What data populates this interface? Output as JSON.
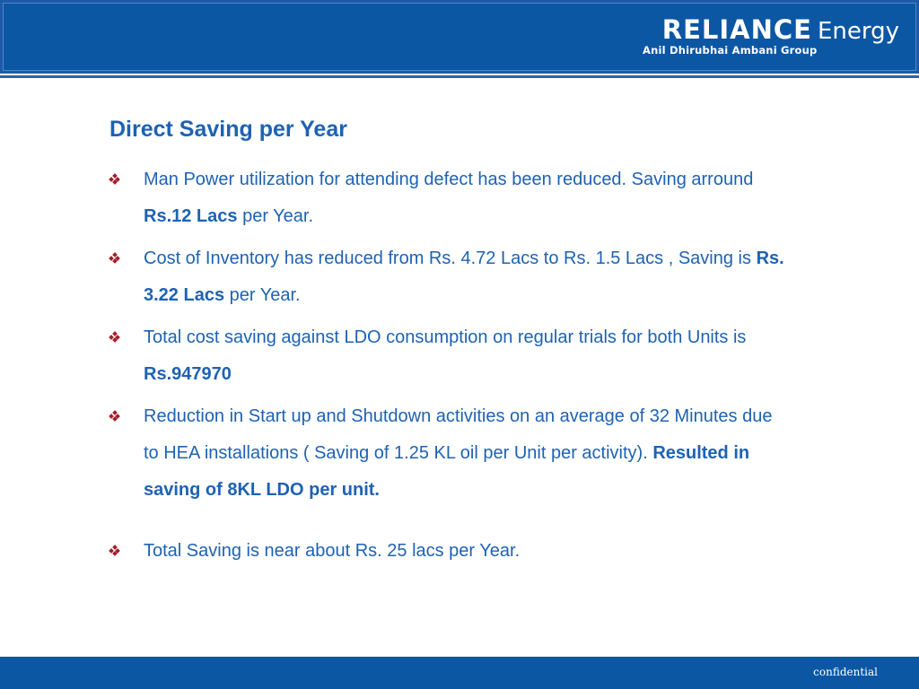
{
  "header": {
    "logo_brand": "RELIANCE",
    "logo_product": "Energy",
    "logo_subtitle": "Anil Dhirubhai Ambani Group",
    "colors": {
      "bar": "#0b57a4",
      "title": "#1e62b3",
      "bullet_icon": "#a51d2a"
    }
  },
  "slide": {
    "title": "Direct Saving per Year",
    "bullet_icon": "diamond-cluster-icon",
    "bullets": [
      {
        "text": "Man Power utilization for attending defect has been reduced. Saving arround ",
        "bold": "Rs.12 Lacs",
        "after": " per Year."
      },
      {
        "text": "Cost of Inventory has reduced from Rs. 4.72 Lacs to Rs. 1.5 Lacs , Saving is ",
        "bold": "Rs. 3.22 Lacs",
        "after": " per Year."
      },
      {
        "text": "Total cost saving against LDO consumption on regular trials for both Units is ",
        "bold": "Rs.947970",
        "after": ""
      },
      {
        "text": "Reduction in Start up and Shutdown activities  on an average of 32 Minutes due to HEA installations ( Saving of  1.25 KL oil per Unit per activity). ",
        "bold": "Resulted in saving of  8KL LDO per unit.",
        "after": ""
      },
      {
        "text": "Total Saving is near about Rs. 25 lacs per Year.",
        "bold": "",
        "after": ""
      }
    ]
  },
  "footer": {
    "label": "confidential"
  }
}
